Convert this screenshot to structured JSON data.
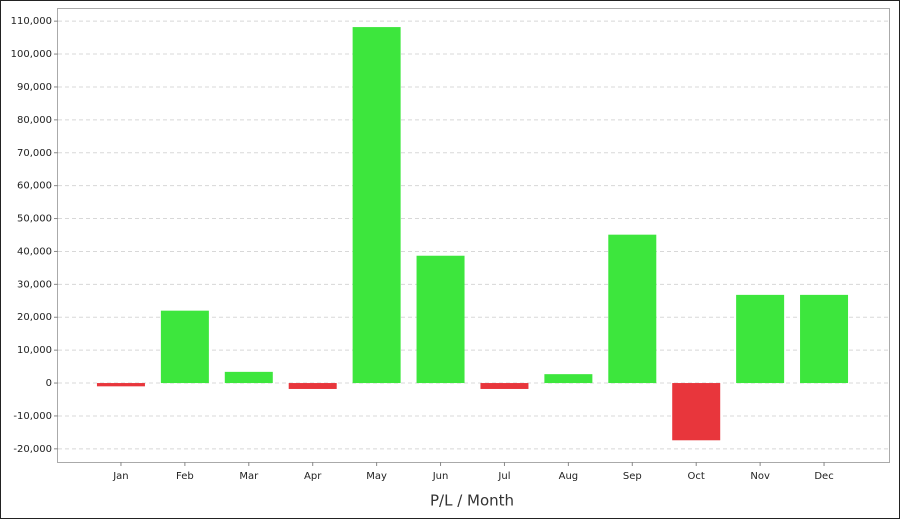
{
  "chart_data": {
    "type": "bar",
    "x_label": "P/L / Month",
    "categories": [
      "Jan",
      "Feb",
      "Mar",
      "Apr",
      "May",
      "Jun",
      "Jul",
      "Aug",
      "Sep",
      "Oct",
      "Nov",
      "Dec"
    ],
    "values": [
      -1000,
      22000,
      3400,
      -1800,
      108200,
      38700,
      -1800,
      2700,
      45100,
      -17400,
      26800,
      26800
    ],
    "positive_color": "#3de63d",
    "negative_color": "#e8363c",
    "ylim": [
      -24000,
      114000
    ],
    "yticks": [
      {
        "value": -20000,
        "label": "-20,000"
      },
      {
        "value": -10000,
        "label": "-10,000"
      },
      0,
      {
        "value": 10000,
        "label": "10,000"
      },
      {
        "value": 20000,
        "label": "20,000"
      },
      {
        "value": 30000,
        "label": "30,000"
      },
      {
        "value": 40000,
        "label": "40,000"
      },
      {
        "value": 50000,
        "label": "50,000"
      },
      {
        "value": 60000,
        "label": "60,000"
      },
      {
        "value": 70000,
        "label": "70,000"
      },
      {
        "value": 80000,
        "label": "80,000"
      },
      {
        "value": 90000,
        "label": "90,000"
      },
      {
        "value": 100000,
        "label": "100,000"
      },
      {
        "value": 110000,
        "label": "110,000"
      }
    ],
    "grid": true
  }
}
